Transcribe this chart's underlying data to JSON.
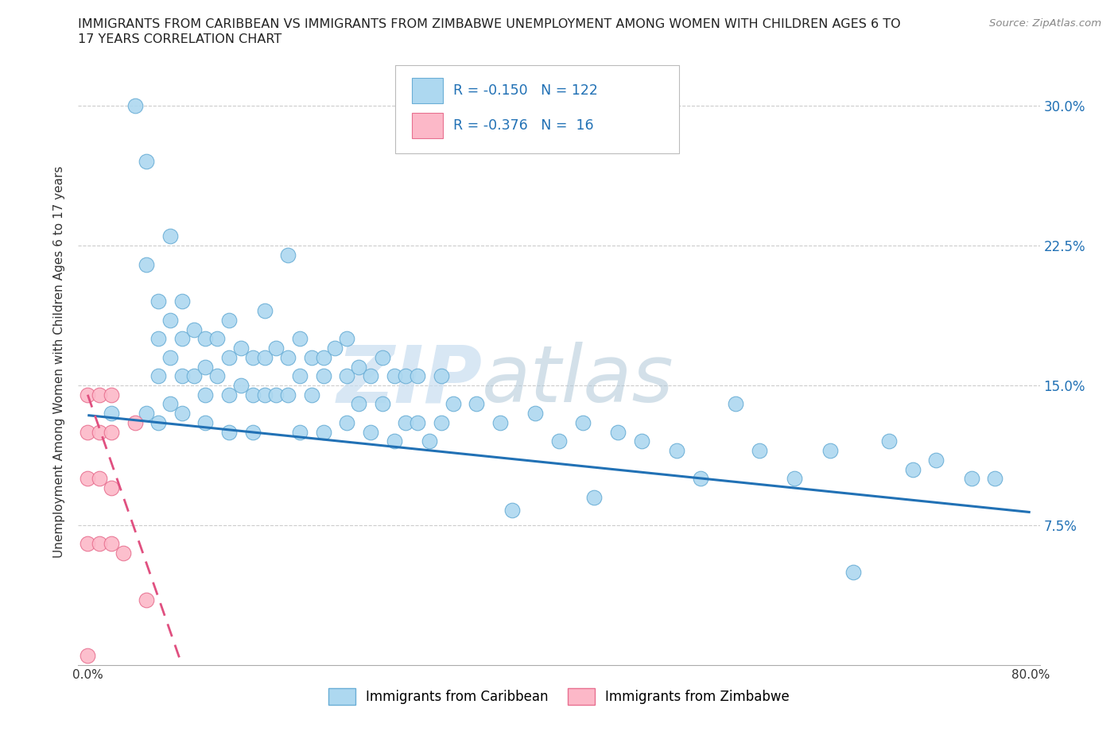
{
  "title_line1": "IMMIGRANTS FROM CARIBBEAN VS IMMIGRANTS FROM ZIMBABWE UNEMPLOYMENT AMONG WOMEN WITH CHILDREN AGES 6 TO",
  "title_line2": "17 YEARS CORRELATION CHART",
  "source": "Source: ZipAtlas.com",
  "ylabel": "Unemployment Among Women with Children Ages 6 to 17 years",
  "xlim": [
    0.0,
    0.8
  ],
  "ylim": [
    0.0,
    0.325
  ],
  "ytick_positions": [
    0.0,
    0.075,
    0.15,
    0.225,
    0.3
  ],
  "ytick_labels_right": [
    "",
    "7.5%",
    "15.0%",
    "22.5%",
    "30.0%"
  ],
  "caribbean_R": -0.15,
  "caribbean_N": 122,
  "zimbabwe_R": -0.376,
  "zimbabwe_N": 16,
  "caribbean_color": "#add8f0",
  "caribbean_edge_color": "#6aaed6",
  "caribbean_line_color": "#2171b5",
  "zimbabwe_color": "#fcb8c8",
  "zimbabwe_edge_color": "#e87090",
  "zimbabwe_line_color": "#e05080",
  "background_color": "#ffffff",
  "watermark_zip": "ZIP",
  "watermark_atlas": "atlas",
  "caribbean_scatter_x": [
    0.02,
    0.04,
    0.05,
    0.05,
    0.05,
    0.06,
    0.06,
    0.06,
    0.06,
    0.07,
    0.07,
    0.07,
    0.07,
    0.08,
    0.08,
    0.08,
    0.08,
    0.09,
    0.09,
    0.1,
    0.1,
    0.1,
    0.1,
    0.11,
    0.11,
    0.12,
    0.12,
    0.12,
    0.12,
    0.13,
    0.13,
    0.14,
    0.14,
    0.14,
    0.15,
    0.15,
    0.15,
    0.16,
    0.16,
    0.17,
    0.17,
    0.17,
    0.18,
    0.18,
    0.18,
    0.19,
    0.19,
    0.2,
    0.2,
    0.2,
    0.21,
    0.22,
    0.22,
    0.22,
    0.23,
    0.23,
    0.24,
    0.24,
    0.25,
    0.25,
    0.26,
    0.26,
    0.27,
    0.27,
    0.28,
    0.28,
    0.29,
    0.3,
    0.3,
    0.31,
    0.33,
    0.35,
    0.36,
    0.38,
    0.4,
    0.42,
    0.43,
    0.45,
    0.47,
    0.5,
    0.52,
    0.55,
    0.57,
    0.6,
    0.63,
    0.65,
    0.68,
    0.7,
    0.72,
    0.75,
    0.77
  ],
  "caribbean_scatter_y": [
    0.135,
    0.3,
    0.27,
    0.215,
    0.135,
    0.195,
    0.175,
    0.155,
    0.13,
    0.23,
    0.185,
    0.165,
    0.14,
    0.195,
    0.175,
    0.155,
    0.135,
    0.18,
    0.155,
    0.175,
    0.16,
    0.145,
    0.13,
    0.175,
    0.155,
    0.185,
    0.165,
    0.145,
    0.125,
    0.17,
    0.15,
    0.165,
    0.145,
    0.125,
    0.19,
    0.165,
    0.145,
    0.17,
    0.145,
    0.22,
    0.165,
    0.145,
    0.175,
    0.155,
    0.125,
    0.165,
    0.145,
    0.165,
    0.155,
    0.125,
    0.17,
    0.175,
    0.155,
    0.13,
    0.16,
    0.14,
    0.155,
    0.125,
    0.165,
    0.14,
    0.155,
    0.12,
    0.155,
    0.13,
    0.155,
    0.13,
    0.12,
    0.155,
    0.13,
    0.14,
    0.14,
    0.13,
    0.083,
    0.135,
    0.12,
    0.13,
    0.09,
    0.125,
    0.12,
    0.115,
    0.1,
    0.14,
    0.115,
    0.1,
    0.115,
    0.05,
    0.12,
    0.105,
    0.11,
    0.1,
    0.1
  ],
  "zimbabwe_scatter_x": [
    0.0,
    0.0,
    0.0,
    0.0,
    0.0,
    0.01,
    0.01,
    0.01,
    0.01,
    0.02,
    0.02,
    0.02,
    0.02,
    0.03,
    0.04,
    0.05
  ],
  "zimbabwe_scatter_y": [
    0.145,
    0.125,
    0.1,
    0.065,
    0.005,
    0.145,
    0.125,
    0.1,
    0.065,
    0.145,
    0.125,
    0.095,
    0.065,
    0.06,
    0.13,
    0.035
  ],
  "carib_trend_x0": 0.0,
  "carib_trend_y0": 0.134,
  "carib_trend_x1": 0.8,
  "carib_trend_y1": 0.082,
  "zimb_trend_x0": 0.0,
  "zimb_trend_y0": 0.145,
  "zimb_trend_x1": 0.08,
  "zimb_trend_y1": 0.0
}
